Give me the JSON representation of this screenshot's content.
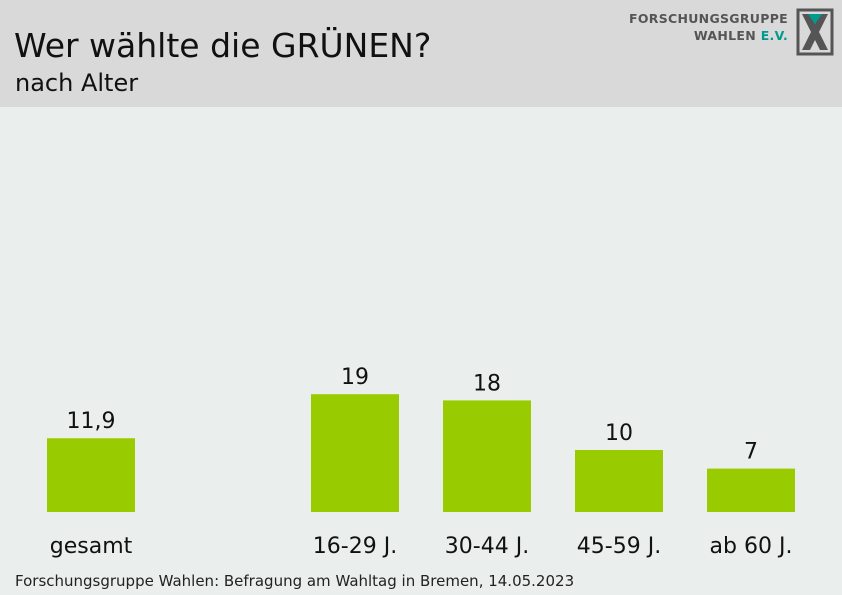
{
  "header": {
    "title": "Wer wählte die GRÜNEN?",
    "subtitle": "nach Alter"
  },
  "logo": {
    "line1": "FORSCHUNGSGRUPPE",
    "line2_main": "WAHLEN",
    "line2_accent": "E.V."
  },
  "source": "Forschungsgruppe Wahlen: Befragung am Wahltag in Bremen, 14.05.2023",
  "colors": {
    "bar": "#99cc00",
    "header_bg": "#d9d9d9",
    "plot_bg": "#eaeeec",
    "logo_accent": "#009a8e"
  },
  "chart_data": {
    "type": "bar",
    "categories": [
      "gesamt",
      "16-29 J.",
      "30-44 J.",
      "45-59 J.",
      "ab 60 J."
    ],
    "values": [
      11.9,
      19,
      18,
      10,
      7
    ],
    "value_labels": [
      "11,9",
      "19",
      "18",
      "10",
      "7"
    ],
    "title": "Wer wählte die GRÜNEN?",
    "subtitle": "nach Alter",
    "xlabel": "",
    "ylabel": "",
    "grid": false,
    "legend": "none"
  }
}
